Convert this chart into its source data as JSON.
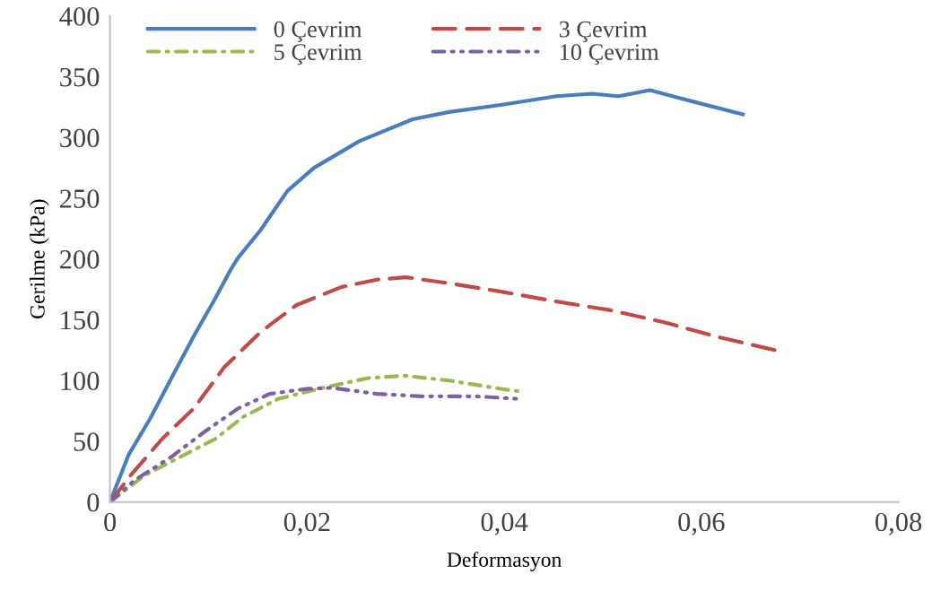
{
  "chart_data": {
    "type": "line",
    "xlabel": "Deformasyon",
    "ylabel": "Gerilme (kPa)",
    "xlim": [
      0,
      0.08
    ],
    "xticks": [
      0,
      {
        "value": 0.02,
        "label": "0,02"
      },
      {
        "value": 0.04,
        "label": "0,04"
      },
      {
        "value": 0.06,
        "label": "0,06"
      },
      {
        "value": 0.08,
        "label": "0,08"
      }
    ],
    "ylim": [
      0,
      400
    ],
    "yticks": [
      0,
      50,
      100,
      150,
      200,
      250,
      300,
      350,
      400
    ],
    "grid": false,
    "legend": "top left",
    "marker": "none",
    "series": [
      {
        "name": "0 Çevrim",
        "color": "#4a7ebb",
        "line_style": "solid",
        "x": [
          0,
          0.0019,
          0.0041,
          0.0065,
          0.0086,
          0.0105,
          0.0123,
          0.013,
          0.0153,
          0.018,
          0.0207,
          0.0253,
          0.0307,
          0.0344,
          0.0398,
          0.0453,
          0.0489,
          0.0516,
          0.0548,
          0.058,
          0.0642
        ],
        "values": [
          0,
          39,
          69,
          106,
          138,
          165,
          192,
          201,
          224,
          256,
          275,
          297,
          315,
          321,
          327,
          334,
          336,
          334,
          339,
          332,
          319
        ]
      },
      {
        "name": "3 Çevrim",
        "color": "#be4b48",
        "line_style": "dashed",
        "x": [
          0,
          0.0021,
          0.0053,
          0.0085,
          0.0116,
          0.0153,
          0.0189,
          0.0235,
          0.0271,
          0.03,
          0.0344,
          0.0398,
          0.0453,
          0.0507,
          0.0562,
          0.0616,
          0.068
        ],
        "values": [
          0,
          22,
          52,
          77,
          111,
          140,
          162,
          177,
          183,
          185,
          180,
          173,
          165,
          158,
          148,
          136,
          124
        ]
      },
      {
        "name": "5 Çevrim",
        "color": "#98b954",
        "line_style": "dashdot",
        "x": [
          0,
          0.0035,
          0.0071,
          0.0107,
          0.0135,
          0.0171,
          0.0216,
          0.0262,
          0.0298,
          0.0344,
          0.0398,
          0.0416
        ],
        "values": [
          0,
          22,
          37,
          52,
          70,
          85,
          94,
          102,
          104,
          100,
          93,
          91
        ]
      },
      {
        "name": "10 Çevrim",
        "color": "#7d60a0",
        "line_style": "dashdotdot",
        "x": [
          0,
          0.0025,
          0.0062,
          0.0098,
          0.013,
          0.0162,
          0.0198,
          0.0225,
          0.0271,
          0.0316,
          0.0371,
          0.0412
        ],
        "values": [
          0,
          18,
          37,
          59,
          77,
          89,
          93,
          94,
          89,
          87,
          87,
          85
        ]
      }
    ]
  }
}
